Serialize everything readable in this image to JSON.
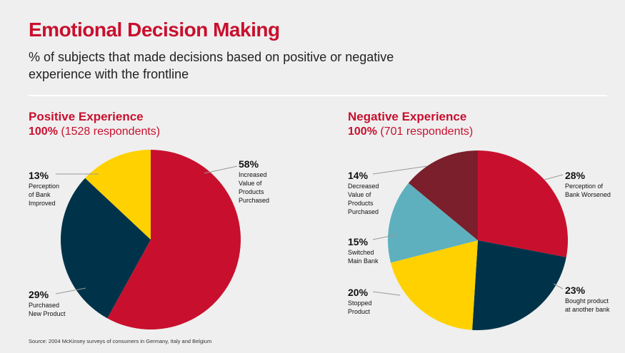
{
  "title": "Emotional Decision Making",
  "subtitle": "% of subjects that made decisions based on positive or negative experience with the frontline",
  "source": "Source: 2004 McKinsey surveys of consumers in Germany, Italy and Belgium",
  "chart_data": [
    {
      "type": "pie",
      "title": "Positive Experience",
      "total_label": "100%",
      "respondents_label": "(1528 respondents)",
      "slices": [
        {
          "pct": "58%",
          "value": 58,
          "label": "Increased Value of Products Purchased",
          "label_lines": [
            "Increased",
            "Value of",
            "Products",
            "Purchased"
          ],
          "color": "#c8102e"
        },
        {
          "pct": "29%",
          "value": 29,
          "label": "Purchased New Product",
          "label_lines": [
            "Purchased",
            "New Product"
          ],
          "color": "#003349"
        },
        {
          "pct": "13%",
          "value": 13,
          "label": "Perception of Bank Improved",
          "label_lines": [
            "Perception",
            "of Bank",
            "Improved"
          ],
          "color": "#ffd100"
        }
      ]
    },
    {
      "type": "pie",
      "title": "Negative Experience",
      "total_label": "100%",
      "respondents_label": "(701 respondents)",
      "slices": [
        {
          "pct": "28%",
          "value": 28,
          "label": "Perception of Bank Worsened",
          "label_lines": [
            "Perception of",
            "Bank Worsened"
          ],
          "color": "#c8102e"
        },
        {
          "pct": "23%",
          "value": 23,
          "label": "Bought product at another bank",
          "label_lines": [
            "Bought product",
            "at another bank"
          ],
          "color": "#003349"
        },
        {
          "pct": "20%",
          "value": 20,
          "label": "Stopped Product",
          "label_lines": [
            "Stopped",
            "Product"
          ],
          "color": "#ffd100"
        },
        {
          "pct": "15%",
          "value": 15,
          "label": "Switched Main Bank",
          "label_lines": [
            "Switched",
            "Main Bank"
          ],
          "color": "#5eb0bf"
        },
        {
          "pct": "14%",
          "value": 14,
          "label": "Decreased Value of Products Purchased",
          "label_lines": [
            "Decreased",
            "Value of",
            "Products",
            "Purchased"
          ],
          "color": "#7a1f2b"
        }
      ]
    }
  ]
}
